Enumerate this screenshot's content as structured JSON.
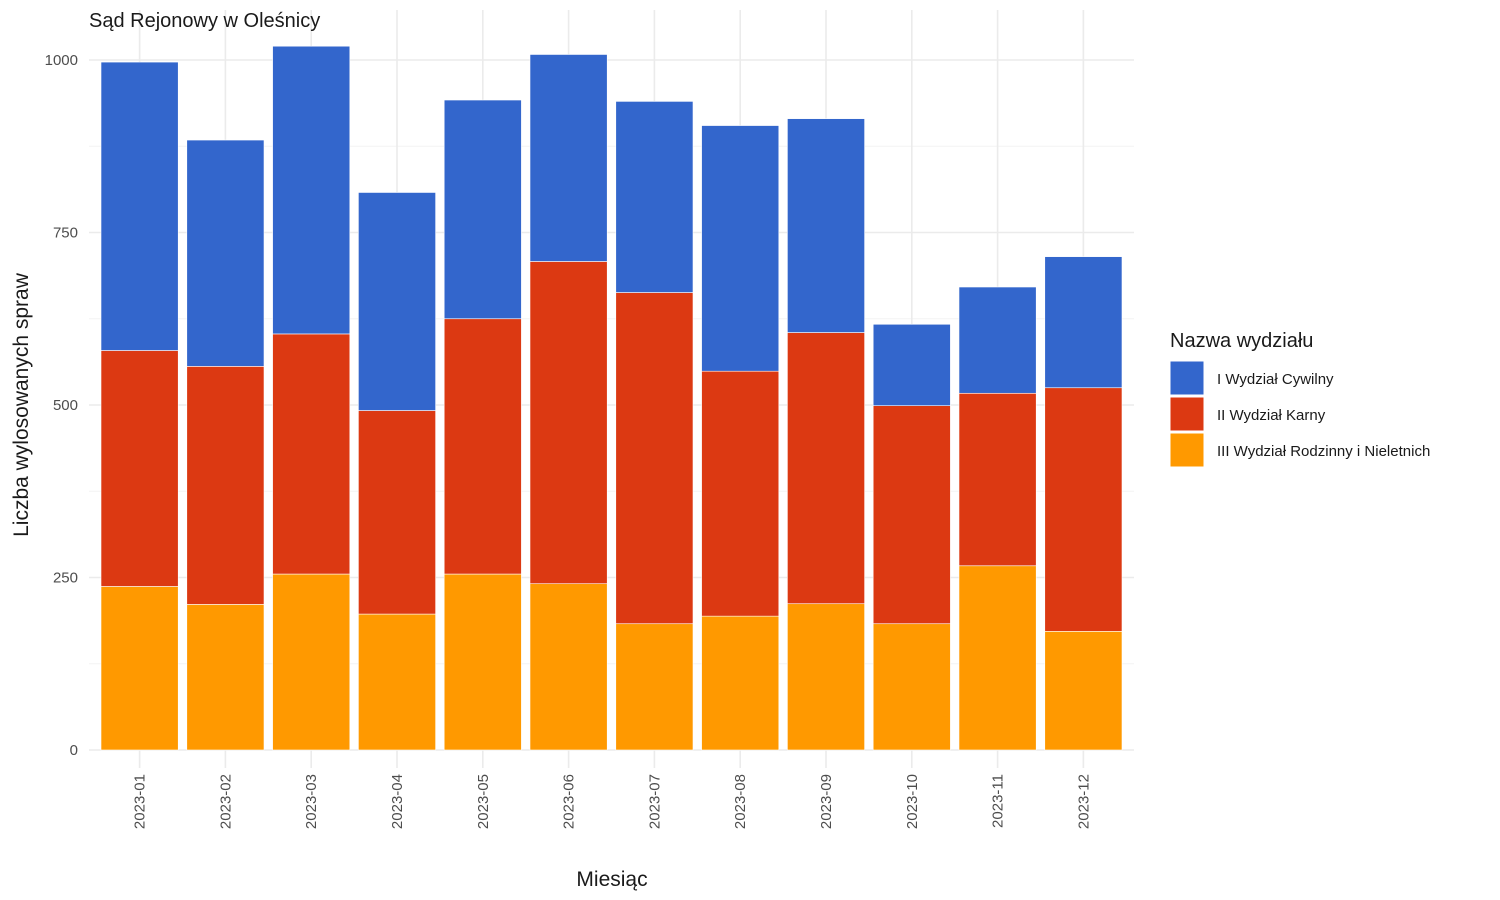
{
  "chart_data": {
    "type": "bar",
    "stacked": true,
    "title": "Sąd Rejonowy w Oleśnicy",
    "xlabel": "Miesiąc",
    "ylabel": "Liczba wylosowanych spraw",
    "categories": [
      "2023-01",
      "2023-02",
      "2023-03",
      "2023-04",
      "2023-05",
      "2023-06",
      "2023-07",
      "2023-08",
      "2023-09",
      "2023-10",
      "2023-11",
      "2023-12"
    ],
    "ylim": [
      0,
      1000
    ],
    "yticks": [
      0,
      250,
      500,
      750,
      1000
    ],
    "grid": true,
    "legend": {
      "title": "Nazwa wydziału",
      "placement": "right"
    },
    "series": [
      {
        "name": "III Wydział Rodzinny i Nieletnich",
        "color": "#ff9900",
        "values": [
          237,
          211,
          255,
          197,
          255,
          241,
          183,
          194,
          212,
          183,
          267,
          172
        ]
      },
      {
        "name": "II Wydział Karny",
        "color": "#dc3912",
        "values": [
          342,
          345,
          348,
          295,
          370,
          467,
          480,
          355,
          393,
          316,
          250,
          353
        ]
      },
      {
        "name": "I Wydział Cywilny",
        "color": "#3366cc",
        "values": [
          418,
          328,
          417,
          316,
          317,
          300,
          277,
          356,
          310,
          118,
          154,
          190
        ]
      }
    ],
    "legend_order": [
      "I Wydział Cywilny",
      "II Wydział Karny",
      "III Wydział Rodzinny i Nieletnich"
    ]
  }
}
